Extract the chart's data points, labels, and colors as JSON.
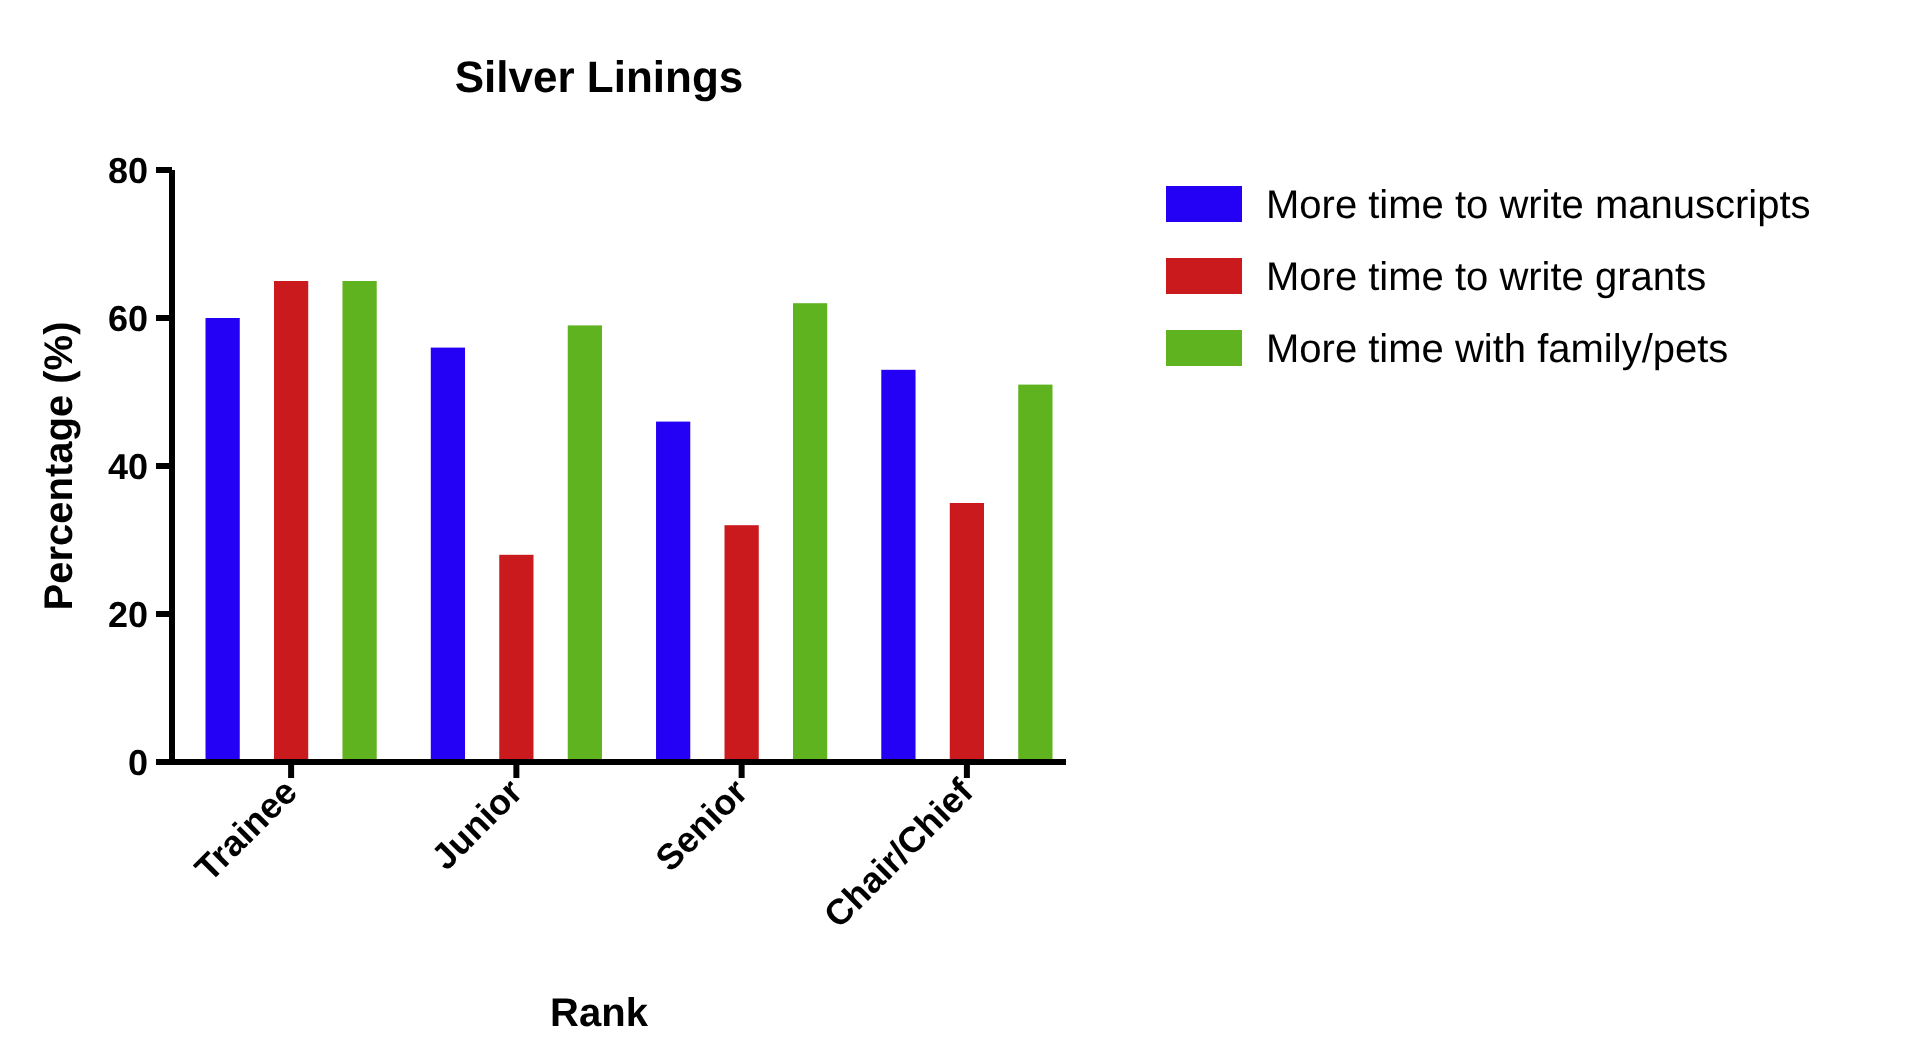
{
  "chart_data": {
    "type": "bar",
    "title": "Silver Linings",
    "xlabel": "Rank",
    "ylabel": "Percentage (%)",
    "categories": [
      "Trainee",
      "Junior",
      "Senior",
      "Chair/Chief"
    ],
    "series": [
      {
        "name": "More time to write manuscripts",
        "color": "#2400f5",
        "values": [
          60,
          56,
          46,
          53
        ]
      },
      {
        "name": "More time to write grants",
        "color": "#cb1a1e",
        "values": [
          65,
          28,
          32,
          35
        ]
      },
      {
        "name": "More time with family/pets",
        "color": "#5eb31e",
        "values": [
          65,
          59,
          62,
          51
        ]
      }
    ],
    "ylim": [
      0,
      80
    ],
    "yticks": [
      0,
      20,
      40,
      60,
      80
    ],
    "grid": false,
    "legend": "right"
  }
}
